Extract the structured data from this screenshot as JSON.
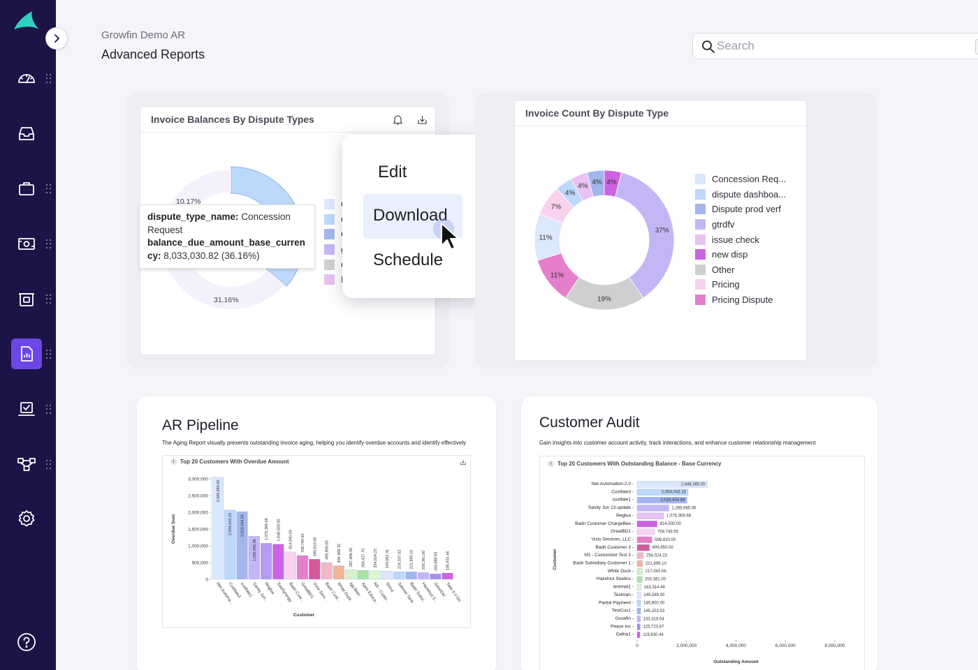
{
  "app": {
    "breadcrumb": "Growfin Demo AR",
    "page_title": "Advanced Reports",
    "search_placeholder": "Search"
  },
  "sidebar": {
    "items": [
      {
        "name": "dashboard",
        "icon": "gauge-icon",
        "active": false
      },
      {
        "name": "inbox",
        "icon": "inbox-icon",
        "active": false
      },
      {
        "name": "collections",
        "icon": "briefcase-icon",
        "active": false
      },
      {
        "name": "payments",
        "icon": "cash-icon",
        "active": false
      },
      {
        "name": "disputes",
        "icon": "terminal-icon",
        "active": false
      },
      {
        "name": "reports",
        "icon": "report-icon",
        "active": true
      },
      {
        "name": "tasks",
        "icon": "checkbox-tray-icon",
        "active": false
      },
      {
        "name": "workflows",
        "icon": "workflow-icon",
        "active": false
      },
      {
        "name": "settings",
        "icon": "gear-icon",
        "active": false
      },
      {
        "name": "help",
        "icon": "help-icon",
        "active": false
      }
    ]
  },
  "colors": {
    "sidebar_bg": "#1c1446",
    "accent": "#6c47e6",
    "concession_request": "#dce8fb",
    "dispute_dashboard": "#bcd8fb",
    "dispute_prod_verf": "#a4b6ee",
    "gtrdfv": "#c4b6f5",
    "issue_check": "#e8c2f2",
    "new_disp": "#cc63e3",
    "other": "#cfcfcf",
    "pricing": "#f9d2ef",
    "pricing_dispute": "#e67fcb"
  },
  "balances_card": {
    "title": "Invoice Balances By Dispute Types",
    "label_top": "10.17%",
    "label_bottom": "31.16%",
    "tooltip": {
      "key1": "dispute_type_name:",
      "val1": "Concession Request",
      "key2": "balance_due_amount_base_currency:",
      "val2": "8,033,030.82 (36.16%)"
    },
    "legend_partial": [
      "C",
      "C",
      "C",
      "g",
      "C",
      "P"
    ]
  },
  "context_menu": {
    "items": [
      "Edit",
      "Download",
      "Schedule"
    ],
    "highlighted": "Download"
  },
  "count_card": {
    "title": "Invoice Count By Dispute Type",
    "chart_data": {
      "type": "pie",
      "donut": true,
      "slices": [
        {
          "label": "new disp",
          "value": 4,
          "display": "4%"
        },
        {
          "label": "gtrdfv",
          "value": 37,
          "display": "37%"
        },
        {
          "label": "Other",
          "value": 19,
          "display": "19%"
        },
        {
          "label": "Pricing Dispute",
          "value": 11,
          "display": "11%"
        },
        {
          "label": "Concession Req...",
          "value": 11,
          "display": "11%"
        },
        {
          "label": "Pricing",
          "value": 7,
          "display": "7%"
        },
        {
          "label": "dispute dashboa...",
          "value": 4,
          "display": "4%"
        },
        {
          "label": "issue check",
          "value": 4,
          "display": "4%"
        },
        {
          "label": "Dispute prod verf",
          "value": 4,
          "display": "4%"
        }
      ],
      "legend": [
        "Concession Req...",
        "dispute dashboa...",
        "Dispute prod verf",
        "gtrdfv",
        "issue check",
        "new disp",
        "Other",
        "Pricing",
        "Pricing Dispute"
      ]
    }
  },
  "ar_pipeline": {
    "title": "AR Pipeline",
    "description": "The Aging Report visually presents outstanding invoice aging, helping you identify overdue accounts and identify effectively",
    "chart_title": "Top 20 Customers With Overdue Amount",
    "chart_data": {
      "type": "bar",
      "xlabel": "Customer",
      "ylabel": "Overdue Sum",
      "ylim": [
        0,
        3000000
      ],
      "yticks": [
        "0",
        "500,000",
        "1,000,000",
        "1,500,000",
        "2,000,000",
        "2,500,000",
        "3,000,000"
      ],
      "categories": [
        "Net-Automa...",
        "Custfate3",
        "custfate1",
        "Sanity Jun...",
        "Regfua",
        "SaaSynergy",
        "Badri Cust...",
        "GreatBD1",
        "Vizio Serv...",
        "Badri Cust...",
        "White Duck",
        "Igg Beer",
        "Apex Educa...",
        "NS - Custo...",
        "Shirui",
        "Salmon Tank",
        "Badri Subsi...",
        "Hazelnut S...",
        "GeonDel",
        "Take It n Go"
      ],
      "values": [
        3049865.0,
        2064043.15,
        2018434.84,
        1285985.06,
        1075369.68,
        1048500.0,
        814500.0,
        708749.55,
        599810.0,
        499850.0,
        404388.32,
        287806.85,
        264427.75,
        254024.23,
        243052.41,
        224337.02,
        221689.1,
        200381.0,
        160880.93,
        185931.66
      ],
      "labels": [
        "3,049,865.00",
        "2,064,043.15",
        "2,018,434.84",
        "1,285,985.06",
        "1,075,369.68",
        "1,048,500.00",
        "814,500.00",
        "708,749.55",
        "599,810.00",
        "499,850.00",
        "404,388.32",
        "287,806.85",
        "264,427.75",
        "254,024.23",
        "243,052.41",
        "224,337.02",
        "221,689.10",
        "200,381.00",
        "160,880.93",
        "185,931.66"
      ],
      "colors": [
        "#dce8fb",
        "#bcd8fb",
        "#a4b6ee",
        "#c4b6f5",
        "#b49cf0",
        "#cc63e3",
        "#f9d2ef",
        "#e67fcb",
        "#d65a9a",
        "#f2b8c6",
        "#f4b597",
        "#d7f1c8",
        "#a8e4a0",
        "#e0f5d0",
        "#dce8fb",
        "#bcd8fb",
        "#a4b6ee",
        "#c4b6f5",
        "#a690e8",
        "#cc63e3"
      ]
    }
  },
  "customer_audit": {
    "title": "Customer Audit",
    "description": "Gain insights into customer account activity, track interactions, and enhance customer relationship management",
    "chart_title": "Top 20 Customers With Outstanding Balance - Base Currency",
    "chart_data": {
      "type": "bar",
      "orientation": "horizontal",
      "xlabel": "Outstanding Amount",
      "ylabel": "Customer",
      "xlim": [
        0,
        8000000
      ],
      "xticks": [
        "0",
        "2,000,000",
        "4,000,000",
        "6,000,000",
        "8,000,000"
      ],
      "categories": [
        "Net-Automation-2.0",
        "Custfate3",
        "custfate1",
        "Sanity Jun 13 update",
        "Regfua",
        "Badri Customer ChargeBee",
        "GreatBD1",
        "Vizio Services, LLC",
        "Badri Customer 3",
        "NS - Customizer Test 3",
        "Badri Subsidiary Customer 1",
        "White Duck",
        "Hazelnut Studios",
        "testmat1",
        "Testman",
        "Partial Payment",
        "TestCus1",
        "Growfin",
        "Peace Inc",
        "Gafna1"
      ],
      "values": [
        2848365.0,
        2064043.15,
        2018434.84,
        1285985.06,
        1075369.68,
        814500.0,
        708749.55,
        599810.0,
        499850.0,
        254024.23,
        221689.1,
        217043.56,
        200381.0,
        163314.48,
        149589.0,
        145800.0,
        145253.53,
        133319.04,
        125723.87,
        119630.44
      ],
      "labels": [
        "2,848,365.00",
        "2,064,043.15",
        "2,018,434.84",
        "1,285,985.06",
        "1,075,369.68",
        "814,500.00",
        "708,749.55",
        "599,810.00",
        "499,850.00",
        "254,024.23",
        "221,689.10",
        "217,043.56",
        "200,381.00",
        "163,314.48",
        "149,589.00",
        "145,800.00",
        "145,253.53",
        "133,319.04",
        "125,723.87",
        "119,630.44"
      ],
      "colors": [
        "#dce8fb",
        "#bcd8fb",
        "#a4b6ee",
        "#c4b6f5",
        "#e8c2f2",
        "#cc63e3",
        "#f9d2ef",
        "#e67fcb",
        "#d65a9a",
        "#f2b8c6",
        "#f4b597",
        "#d7f1c8",
        "#a8e4a0",
        "#e0f5d0",
        "#dce8fb",
        "#bcd8fb",
        "#a4b6ee",
        "#c4b6f5",
        "#a690e8",
        "#cc63e3"
      ]
    }
  }
}
